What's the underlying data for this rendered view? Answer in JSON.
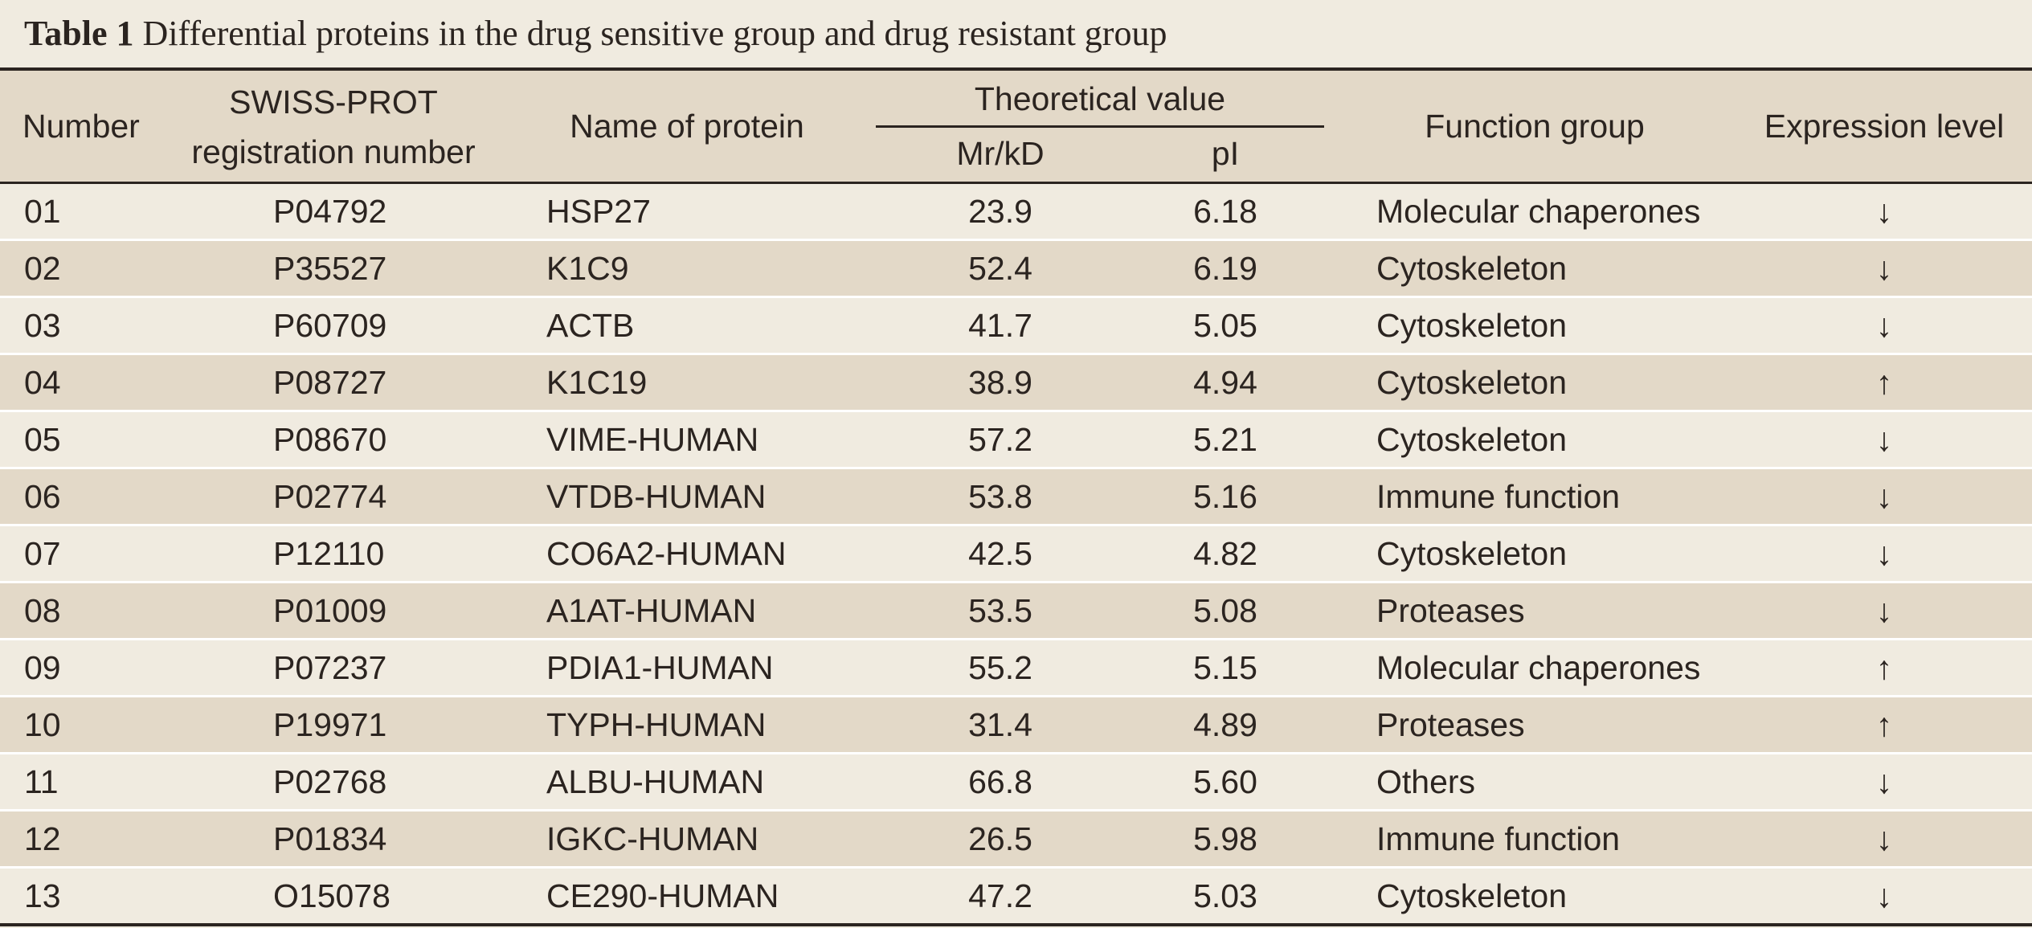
{
  "caption": {
    "label": "Table 1",
    "text": "Differential proteins in the drug sensitive group and drug resistant group"
  },
  "headers": {
    "number": "Number",
    "swiss_line1": "SWISS-PROT",
    "swiss_line2": "registration number",
    "name": "Name of protein",
    "theoretical": "Theoretical value",
    "mr": "Mr/kD",
    "pi": "pI",
    "function": "Function group",
    "expression": "Expression level"
  },
  "rows": [
    {
      "number": "01",
      "reg": "P04792",
      "name": "HSP27",
      "mr": "23.9",
      "pi": "6.18",
      "func": "Molecular chaperones",
      "expr": "↓"
    },
    {
      "number": "02",
      "reg": "P35527",
      "name": "K1C9",
      "mr": "52.4",
      "pi": "6.19",
      "func": "Cytoskeleton",
      "expr": "↓"
    },
    {
      "number": "03",
      "reg": "P60709",
      "name": "ACTB",
      "mr": "41.7",
      "pi": "5.05",
      "func": "Cytoskeleton",
      "expr": "↓"
    },
    {
      "number": "04",
      "reg": "P08727",
      "name": "K1C19",
      "mr": "38.9",
      "pi": "4.94",
      "func": "Cytoskeleton",
      "expr": "↑"
    },
    {
      "number": "05",
      "reg": "P08670",
      "name": "VIME-HUMAN",
      "mr": "57.2",
      "pi": "5.21",
      "func": "Cytoskeleton",
      "expr": "↓"
    },
    {
      "number": "06",
      "reg": "P02774",
      "name": "VTDB-HUMAN",
      "mr": "53.8",
      "pi": "5.16",
      "func": "Immune function",
      "expr": "↓"
    },
    {
      "number": "07",
      "reg": "P12110",
      "name": "CO6A2-HUMAN",
      "mr": "42.5",
      "pi": "4.82",
      "func": "Cytoskeleton",
      "expr": "↓"
    },
    {
      "number": "08",
      "reg": "P01009",
      "name": "A1AT-HUMAN",
      "mr": "53.5",
      "pi": "5.08",
      "func": "Proteases",
      "expr": "↓"
    },
    {
      "number": "09",
      "reg": "P07237",
      "name": "PDIA1-HUMAN",
      "mr": "55.2",
      "pi": "5.15",
      "func": "Molecular chaperones",
      "expr": "↑"
    },
    {
      "number": "10",
      "reg": "P19971",
      "name": "TYPH-HUMAN",
      "mr": "31.4",
      "pi": "4.89",
      "func": "Proteases",
      "expr": "↑"
    },
    {
      "number": "11",
      "reg": "P02768",
      "name": "ALBU-HUMAN",
      "mr": "66.8",
      "pi": "5.60",
      "func": "Others",
      "expr": "↓"
    },
    {
      "number": "12",
      "reg": "P01834",
      "name": "IGKC-HUMAN",
      "mr": "26.5",
      "pi": "5.98",
      "func": "Immune function",
      "expr": "↓"
    },
    {
      "number": "13",
      "reg": "O15078",
      "name": "CE290-HUMAN",
      "mr": "47.2",
      "pi": "5.03",
      "func": "Cytoskeleton",
      "expr": "↓"
    }
  ]
}
